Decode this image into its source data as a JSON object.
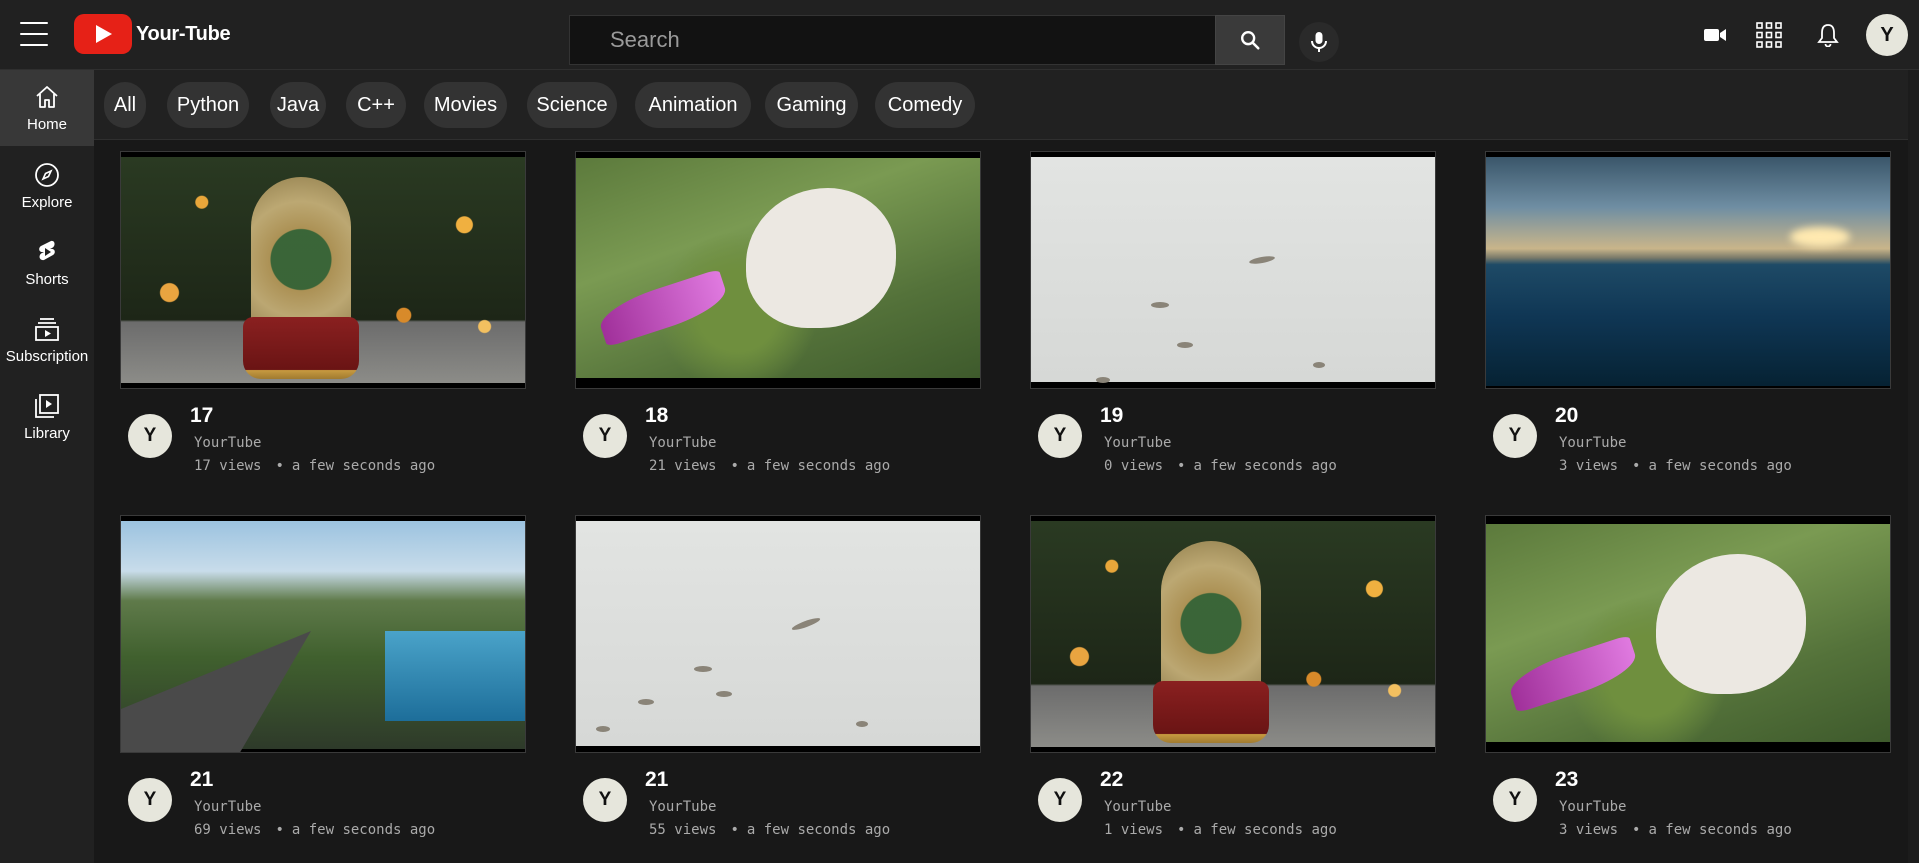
{
  "app": {
    "name": "Your-Tube"
  },
  "header": {
    "search_placeholder": "Search",
    "avatar_letter": "Y",
    "icons": [
      "menu-icon",
      "search-icon",
      "mic-icon",
      "video-camera-icon",
      "apps-grid-icon",
      "bell-icon"
    ]
  },
  "sidebar": {
    "items": [
      {
        "label": "Home",
        "icon": "home-icon",
        "active": true
      },
      {
        "label": "Explore",
        "icon": "compass-icon",
        "active": false
      },
      {
        "label": "Shorts",
        "icon": "shorts-icon",
        "active": false
      },
      {
        "label": "Subscription",
        "icon": "subscription-icon",
        "active": false
      },
      {
        "label": "Library",
        "icon": "library-icon",
        "active": false
      }
    ]
  },
  "chips": [
    "All",
    "Python",
    "Java",
    "C++",
    "Movies",
    "Science",
    "Animation",
    "Gaming",
    "Comedy"
  ],
  "videos": [
    {
      "title": "17",
      "channel": "YourTube",
      "views": "17 views",
      "time": "a few seconds ago",
      "avatar": "Y",
      "thumb": "snow-globe"
    },
    {
      "title": "18",
      "channel": "YourTube",
      "views": "21 views",
      "time": "a few seconds ago",
      "avatar": "Y",
      "thumb": "bunny"
    },
    {
      "title": "19",
      "channel": "YourTube",
      "views": "0 views",
      "time": "a few seconds ago",
      "avatar": "Y",
      "thumb": "birds"
    },
    {
      "title": "20",
      "channel": "YourTube",
      "views": "3 views",
      "time": "a few seconds ago",
      "avatar": "Y",
      "thumb": "sea"
    },
    {
      "title": "21",
      "channel": "YourTube",
      "views": "69 views",
      "time": "a few seconds ago",
      "avatar": "Y",
      "thumb": "coastal-road"
    },
    {
      "title": "21",
      "channel": "YourTube",
      "views": "55 views",
      "time": "a few seconds ago",
      "avatar": "Y",
      "thumb": "birds"
    },
    {
      "title": "22",
      "channel": "YourTube",
      "views": "1 views",
      "time": "a few seconds ago",
      "avatar": "Y",
      "thumb": "snow-globe"
    },
    {
      "title": "23",
      "channel": "YourTube",
      "views": "3 views",
      "time": "a few seconds ago",
      "avatar": "Y",
      "thumb": "bunny"
    }
  ],
  "colors": {
    "background": "#181818",
    "header": "#212121",
    "brand_red": "#e62117",
    "chip": "#333333",
    "muted_text": "#aaaaaa"
  }
}
